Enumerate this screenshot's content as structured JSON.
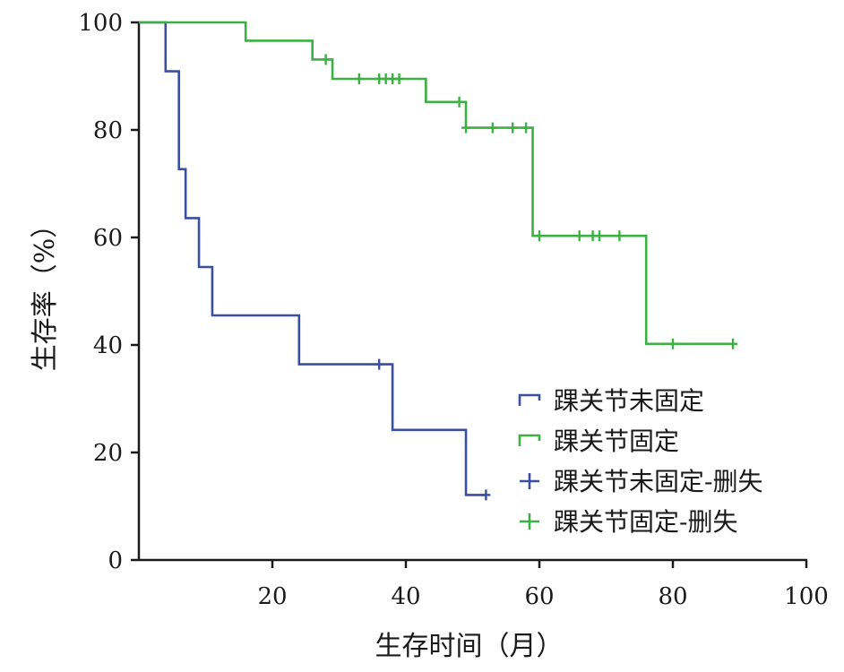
{
  "chart_data": {
    "type": "line",
    "subtype": "kaplan-meier step",
    "title": "",
    "xlabel": "生存时间（月）",
    "ylabel": "生存率（%）",
    "xlim": [
      0,
      100
    ],
    "ylim": [
      0,
      100
    ],
    "x_ticks": [
      20,
      40,
      60,
      80,
      100
    ],
    "y_ticks": [
      0,
      20,
      40,
      60,
      80,
      100
    ],
    "grid": false,
    "legend_position": "bottom-right",
    "series": [
      {
        "name": "踝关节未固定",
        "color": "#3b4fa0",
        "x": [
          0,
          4,
          6,
          7,
          9,
          11,
          24,
          38,
          49,
          52
        ],
        "y": [
          100,
          90.9,
          72.7,
          63.6,
          54.5,
          45.5,
          36.4,
          24.2,
          12.1,
          12.1
        ]
      },
      {
        "name": "踝关节固定",
        "color": "#3cb043",
        "x": [
          0,
          16,
          26,
          29,
          43,
          49,
          59,
          76,
          89
        ],
        "y": [
          100,
          96.6,
          93.1,
          89.5,
          85.2,
          80.4,
          60.3,
          40.2,
          40.2
        ]
      }
    ],
    "censored": [
      {
        "name": "踝关节未固定-删失",
        "color": "#3b4fa0",
        "x": [
          36,
          52
        ],
        "y": [
          36.4,
          12.1
        ]
      },
      {
        "name": "踝关节固定-删失",
        "color": "#3cb043",
        "x": [
          28,
          33,
          36,
          37,
          38,
          39,
          48,
          49,
          53,
          56,
          58,
          60,
          66,
          68,
          69,
          72,
          80,
          89
        ],
        "y": [
          93.1,
          89.5,
          89.5,
          89.5,
          89.5,
          89.5,
          85.2,
          80.4,
          80.4,
          80.4,
          80.4,
          60.3,
          60.3,
          60.3,
          60.3,
          60.3,
          40.2,
          40.2
        ]
      }
    ]
  }
}
